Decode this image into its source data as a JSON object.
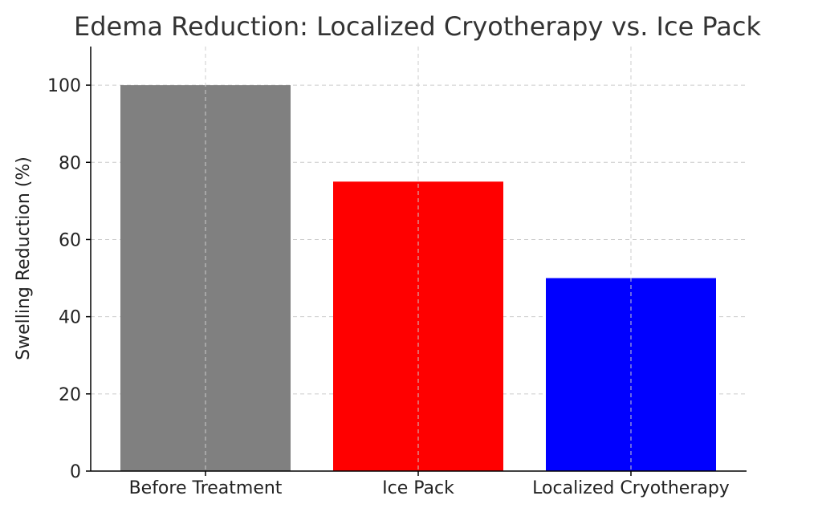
{
  "chart_data": {
    "type": "bar",
    "title": "Edema Reduction: Localized Cryotherapy vs. Ice Pack",
    "xlabel": "",
    "ylabel": "Swelling Reduction (%)",
    "categories": [
      "Before Treatment",
      "Ice Pack",
      "Localized Cryotherapy"
    ],
    "values": [
      100,
      75,
      50
    ],
    "colors": [
      "#808080",
      "#ff0000",
      "#0000ff"
    ],
    "ylim": [
      0,
      110
    ],
    "yticks": [
      0,
      20,
      40,
      60,
      80,
      100
    ],
    "grid": true
  }
}
